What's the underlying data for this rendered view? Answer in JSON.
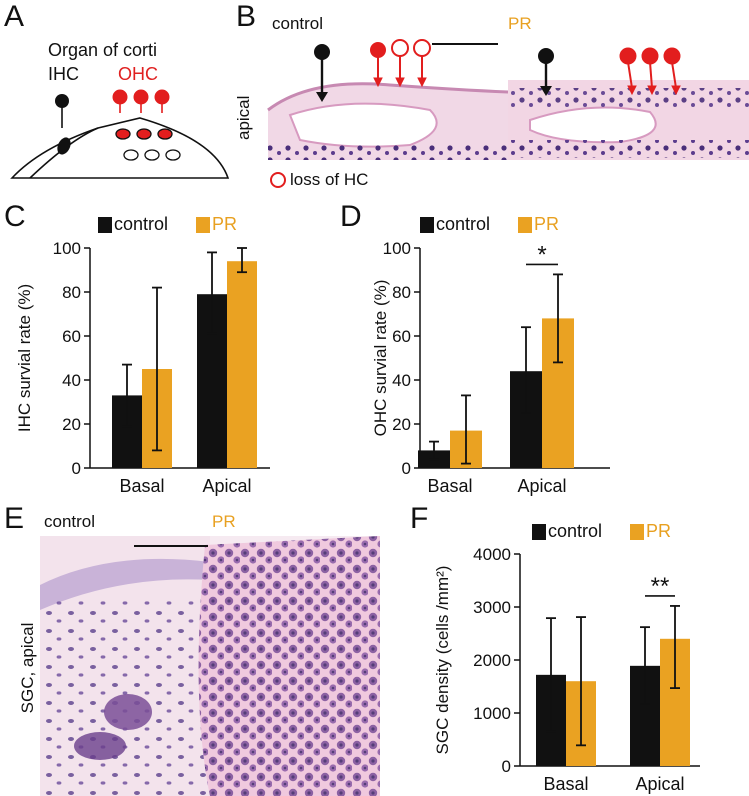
{
  "colors": {
    "control": "#111111",
    "pr": "#eaa222",
    "ohc_red": "#e21e1e",
    "tissue_pink": "#e6b9d4",
    "nuclei": "#4a2f7a"
  },
  "panels": {
    "A": {
      "label": "A",
      "title": "Organ of corti",
      "ihc": "IHC",
      "ohc": "OHC"
    },
    "B": {
      "label": "B",
      "control": "control",
      "pr": "PR",
      "apical": "apical",
      "legend": "loss of HC"
    },
    "C": {
      "label": "C"
    },
    "D": {
      "label": "D"
    },
    "E": {
      "label": "E",
      "control": "control",
      "pr": "PR",
      "side": "SGC, apical"
    },
    "F": {
      "label": "F"
    }
  },
  "legend": {
    "control": "control",
    "pr": "PR"
  },
  "chart_data": [
    {
      "id": "C",
      "type": "bar",
      "categories": [
        "Basal",
        "Apical"
      ],
      "ylabel": "IHC survial rate (%)",
      "ylim": [
        0,
        100
      ],
      "yticks": [
        "0",
        "20",
        "40",
        "60",
        "80",
        "100"
      ],
      "ytick_values": [
        0,
        20,
        40,
        60,
        80,
        100
      ],
      "series": [
        {
          "name": "control",
          "values": [
            33,
            79
          ],
          "err_low": [
            19,
            61
          ],
          "err_high": [
            47,
            98
          ]
        },
        {
          "name": "PR",
          "values": [
            45,
            94
          ],
          "err_low": [
            8,
            89
          ],
          "err_high": [
            82,
            100
          ]
        }
      ],
      "significance": []
    },
    {
      "id": "D",
      "type": "bar",
      "categories": [
        "Basal",
        "Apical"
      ],
      "ylabel": "OHC survial rate (%)",
      "ylim": [
        0,
        100
      ],
      "yticks": [
        "0",
        "20",
        "40",
        "60",
        "80",
        "100"
      ],
      "ytick_values": [
        0,
        20,
        40,
        60,
        80,
        100
      ],
      "series": [
        {
          "name": "control",
          "values": [
            8,
            44
          ],
          "err_low": [
            4,
            25
          ],
          "err_high": [
            12,
            64
          ]
        },
        {
          "name": "PR",
          "values": [
            17,
            68
          ],
          "err_low": [
            2,
            48
          ],
          "err_high": [
            33,
            88
          ]
        }
      ],
      "significance": [
        {
          "category": "Apical",
          "label": "*"
        }
      ]
    },
    {
      "id": "F",
      "type": "bar",
      "categories": [
        "Basal",
        "Apical"
      ],
      "ylabel": "SGC density (cells /mm²)",
      "ylim": [
        0,
        4000
      ],
      "yticks": [
        "0",
        "1000",
        "2000",
        "3000",
        "4000"
      ],
      "ytick_values": [
        0,
        1000,
        2000,
        3000,
        4000
      ],
      "series": [
        {
          "name": "control",
          "values": [
            1720,
            1890
          ],
          "err_low": [
            650,
            1170
          ],
          "err_high": [
            2790,
            2620
          ]
        },
        {
          "name": "PR",
          "values": [
            1600,
            2400
          ],
          "err_low": [
            390,
            1470
          ],
          "err_high": [
            2810,
            3020
          ]
        }
      ],
      "significance": [
        {
          "category": "Apical",
          "label": "**"
        }
      ]
    }
  ]
}
